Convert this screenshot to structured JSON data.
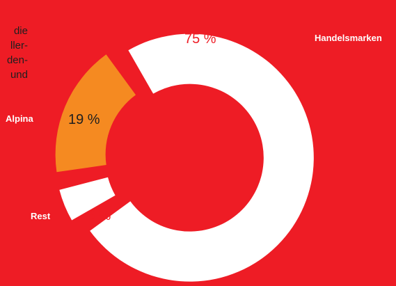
{
  "intro_text_lines": [
    "die",
    "ller-",
    "den-",
    "und"
  ],
  "colors": {
    "background": "#EE1C25",
    "text": "#1f1f1f",
    "label_dark": "#1f1f1f",
    "label_white": "#ffffff"
  },
  "chart_data": {
    "type": "pie",
    "variant": "donut-exploded",
    "title": "",
    "unit": "%",
    "slices": [
      {
        "label": "Handelsmarken",
        "value": 75,
        "value_label": "75 %",
        "color": "#ffffff",
        "value_color": "#EE1C25",
        "label_color": "#ffffff"
      },
      {
        "label": "Rest",
        "value": 6,
        "value_label": "6 %",
        "color": "#ffffff",
        "value_color": "#EE1C25",
        "label_color": "#ffffff"
      },
      {
        "label": "Alpina",
        "value": 19,
        "value_label": "19 %",
        "color": "#F58A21",
        "value_color": "#1f1f1f",
        "label_color": "#ffffff"
      }
    ]
  }
}
